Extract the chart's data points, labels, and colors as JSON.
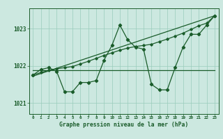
{
  "background_color": "#cce8e0",
  "grid_color": "#99ccbb",
  "line_color": "#1a5c2a",
  "text_color": "#1a5c2a",
  "xlabel": "Graphe pression niveau de la mer (hPa)",
  "ylim": [
    1020.7,
    1023.55
  ],
  "xlim": [
    -0.5,
    23.5
  ],
  "yticks": [
    1021,
    1022,
    1023
  ],
  "xticks": [
    0,
    1,
    2,
    3,
    4,
    5,
    6,
    7,
    8,
    9,
    10,
    11,
    12,
    13,
    14,
    15,
    16,
    17,
    18,
    19,
    20,
    21,
    22,
    23
  ],
  "series1_zigzag": {
    "x": [
      0,
      1,
      2,
      3,
      4,
      5,
      6,
      7,
      8,
      9,
      10,
      11,
      12,
      13,
      14,
      15,
      16,
      17,
      18,
      19,
      20,
      21,
      22,
      23
    ],
    "y": [
      1021.75,
      1021.9,
      1021.95,
      1021.85,
      1021.3,
      1021.3,
      1021.55,
      1021.55,
      1021.6,
      1022.15,
      1022.55,
      1023.1,
      1022.7,
      1022.5,
      1022.45,
      1021.5,
      1021.35,
      1021.35,
      1021.95,
      1022.5,
      1022.85,
      1022.85,
      1023.1,
      1023.35
    ]
  },
  "series2_smooth": {
    "x": [
      0,
      1,
      2,
      3,
      4,
      5,
      6,
      7,
      8,
      9,
      10,
      11,
      12,
      13,
      14,
      15,
      16,
      17,
      18,
      19,
      20,
      21,
      22,
      23
    ],
    "y": [
      1021.75,
      1021.82,
      1021.88,
      1021.92,
      1021.95,
      1021.98,
      1022.05,
      1022.12,
      1022.2,
      1022.28,
      1022.35,
      1022.42,
      1022.48,
      1022.52,
      1022.55,
      1022.58,
      1022.65,
      1022.72,
      1022.8,
      1022.88,
      1022.98,
      1023.08,
      1023.15,
      1023.35
    ]
  },
  "series3_flat": {
    "x": [
      0,
      14,
      23
    ],
    "y": [
      1021.88,
      1021.88,
      1021.88
    ]
  },
  "series4_trend": {
    "x": [
      0,
      23
    ],
    "y": [
      1021.72,
      1023.35
    ]
  }
}
